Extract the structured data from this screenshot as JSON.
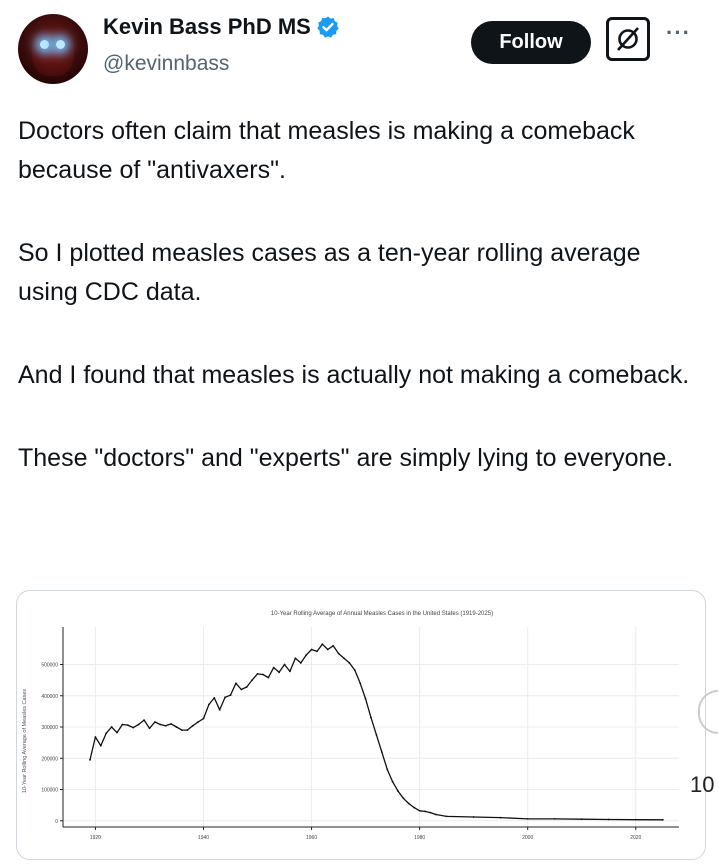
{
  "author": {
    "name": "Kevin Bass PhD MS",
    "handle": "@kevinnbass",
    "verified": true,
    "avatar_icon": "profile-avatar"
  },
  "actions": {
    "follow_label": "Follow",
    "grok_icon": "grok-icon",
    "more_icon": "more-icon",
    "more_label": "···"
  },
  "tweet": {
    "paragraphs": [
      "Doctors often claim that measles is making a comeback because of \"antivaxers\".",
      "So I plotted measles cases as a ten-year rolling average using CDC data.",
      "And I found that measles is actually not making a comeback.",
      "These \"doctors\" and \"experts\" are simply lying to everyone."
    ]
  },
  "side_number": "10",
  "colors": {
    "text": "#0f1419",
    "secondary": "#536471",
    "verified": "#1d9bf0",
    "line": "#111111"
  },
  "chart_data": {
    "type": "line",
    "title": "10-Year Rolling Average of Annual Measles Cases in the United States (1919-2025)",
    "xlabel": "",
    "ylabel": "10-Year Rolling Average of Measles Cases",
    "xlim": [
      1914,
      2028
    ],
    "ylim": [
      -20000,
      620000
    ],
    "xticks": [
      "1920",
      "1940",
      "1960",
      "1980",
      "2000",
      "2020"
    ],
    "yticks": [
      "0",
      "100000",
      "200000",
      "300000",
      "400000",
      "500000"
    ],
    "grid": true,
    "series": [
      {
        "x": [
          1919,
          1920,
          1921,
          1922,
          1923,
          1924,
          1925,
          1926,
          1927,
          1928,
          1929,
          1930,
          1931,
          1932,
          1933,
          1934,
          1935,
          1936,
          1937,
          1938,
          1939,
          1940,
          1941,
          1942,
          1943,
          1944,
          1945,
          1946,
          1947,
          1948,
          1949,
          1950,
          1951,
          1952,
          1953,
          1954,
          1955,
          1956,
          1957,
          1958,
          1959,
          1960,
          1961,
          1962,
          1963,
          1964,
          1965,
          1966,
          1967,
          1968,
          1969,
          1970,
          1971,
          1972,
          1973,
          1974,
          1975,
          1976,
          1977,
          1978,
          1979,
          1980,
          1981,
          1982,
          1983,
          1985,
          1990,
          1995,
          2000,
          2005,
          2010,
          2015,
          2020,
          2025
        ],
        "y": [
          195000,
          268000,
          240000,
          280000,
          300000,
          282000,
          308000,
          306000,
          298000,
          308000,
          322000,
          296000,
          316000,
          308000,
          304000,
          310000,
          300000,
          290000,
          290000,
          304000,
          316000,
          327000,
          372000,
          393000,
          355000,
          395000,
          402000,
          440000,
          420000,
          428000,
          450000,
          470000,
          468000,
          458000,
          490000,
          475000,
          500000,
          478000,
          520000,
          505000,
          530000,
          548000,
          542000,
          565000,
          548000,
          560000,
          535000,
          520000,
          505000,
          482000,
          440000,
          390000,
          330000,
          275000,
          220000,
          165000,
          125000,
          95000,
          72000,
          55000,
          42000,
          32000,
          30000,
          26000,
          20000,
          14000,
          12000,
          10000,
          6000,
          6000,
          5000,
          4000,
          3500,
          3000
        ]
      }
    ]
  }
}
